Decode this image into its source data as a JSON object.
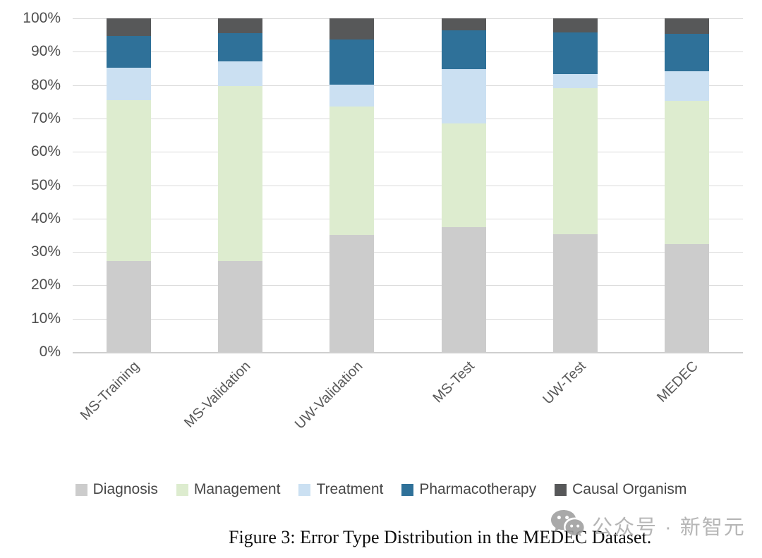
{
  "chart_data": {
    "type": "bar",
    "stacked": true,
    "orientation": "vertical",
    "categories": [
      "MS-Training",
      "MS-Validation",
      "UW-Validation",
      "MS-Test",
      "UW-Test",
      "MEDEC"
    ],
    "series": [
      {
        "name": "Diagnosis",
        "color": "#cccccc",
        "values": [
          27.3,
          27.3,
          35.0,
          37.4,
          35.4,
          32.4
        ]
      },
      {
        "name": "Management",
        "color": "#ddeccf",
        "values": [
          48.2,
          52.5,
          38.6,
          31.0,
          43.6,
          42.9
        ]
      },
      {
        "name": "Treatment",
        "color": "#cbe0f2",
        "values": [
          9.6,
          7.4,
          6.6,
          16.3,
          4.2,
          8.9
        ]
      },
      {
        "name": "Pharmacotherapy",
        "color": "#2f7199",
        "values": [
          9.7,
          8.3,
          13.5,
          11.8,
          12.6,
          11.2
        ]
      },
      {
        "name": "Causal Organism",
        "color": "#575859",
        "values": [
          5.2,
          4.5,
          6.3,
          3.5,
          4.2,
          4.6
        ]
      }
    ],
    "y_ticks": [
      "100%",
      "90%",
      "80%",
      "70%",
      "60%",
      "50%",
      "40%",
      "30%",
      "20%",
      "10%",
      "0%"
    ],
    "ylim": [
      0,
      100
    ],
    "grid": true,
    "legend_position": "bottom",
    "title": ""
  },
  "caption": "Figure 3: Error Type Distribution in the MEDEC Dataset.",
  "watermark": {
    "icon": "wechat-icon",
    "text": "公众号 · 新智元"
  }
}
